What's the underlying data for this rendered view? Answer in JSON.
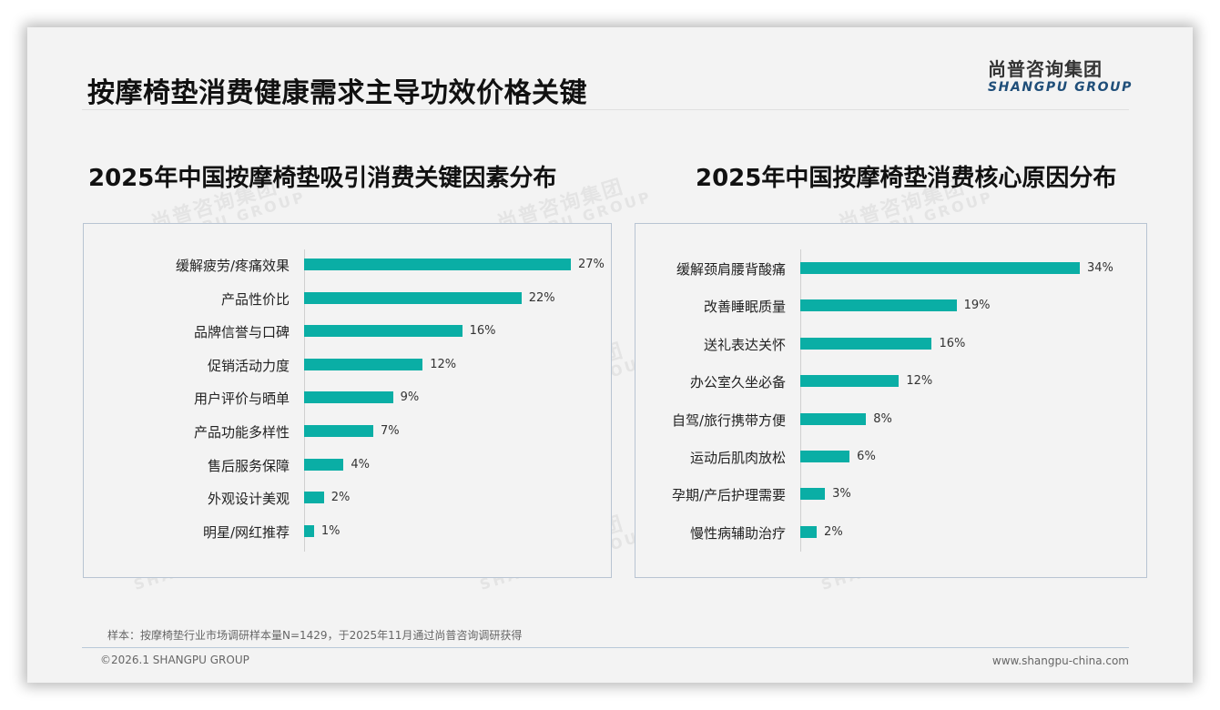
{
  "header": {
    "title": "按摩椅垫消费健康需求主导功效价格关键",
    "logo_cn": "尚普咨询集团",
    "logo_en": "SHANGPU GROUP"
  },
  "watermark": {
    "cn": "尚普咨询集团",
    "en": "SHANGPU GROUP"
  },
  "chart_data": [
    {
      "type": "bar",
      "orientation": "horizontal",
      "title": "2025年中国按摩椅垫吸引消费关键因素分布",
      "categories": [
        "缓解疲劳/疼痛效果",
        "产品性价比",
        "品牌信誉与口碑",
        "促销活动力度",
        "用户评价与晒单",
        "产品功能多样性",
        "售后服务保障",
        "外观设计美观",
        "明星/网红推荐"
      ],
      "values": [
        27,
        22,
        16,
        12,
        9,
        7,
        4,
        2,
        1
      ],
      "labels": [
        "27%",
        "22%",
        "16%",
        "12%",
        "9%",
        "7%",
        "4%",
        "2%",
        "1%"
      ],
      "unit": "%",
      "color": "#0aaea5",
      "xlabel": "",
      "ylabel": "",
      "grid": false,
      "legend": "none"
    },
    {
      "type": "bar",
      "orientation": "horizontal",
      "title": "2025年中国按摩椅垫消费核心原因分布",
      "categories": [
        "缓解颈肩腰背酸痛",
        "改善睡眠质量",
        "送礼表达关怀",
        "办公室久坐必备",
        "自驾/旅行携带方便",
        "运动后肌肉放松",
        "孕期/产后护理需要",
        "慢性病辅助治疗"
      ],
      "values": [
        34,
        19,
        16,
        12,
        8,
        6,
        3,
        2
      ],
      "labels": [
        "34%",
        "19%",
        "16%",
        "12%",
        "8%",
        "6%",
        "3%",
        "2%"
      ],
      "unit": "%",
      "color": "#0aaea5",
      "xlabel": "",
      "ylabel": "",
      "grid": false,
      "legend": "none"
    }
  ],
  "footer": {
    "note": "样本：按摩椅垫行业市场调研样本量N=1429，于2025年11月通过尚普咨询调研获得",
    "copyright": "©2026.1 SHANGPU GROUP",
    "website": "www.shangpu-china.com"
  }
}
